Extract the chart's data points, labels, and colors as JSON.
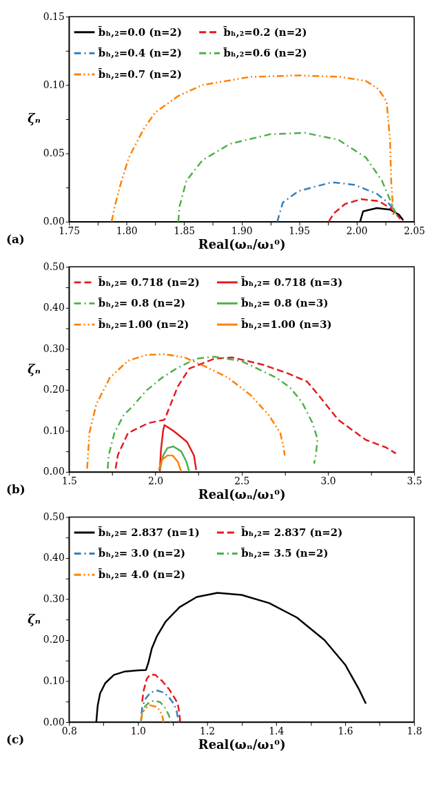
{
  "chart_data": [
    {
      "type": "line",
      "xlabel": "Real(ωₙ/ω₁⁰)",
      "ylabel": "ζₙ",
      "legend": "top left",
      "grid": false,
      "annotations": [
        "(a)"
      ],
      "xlim": [
        1.75,
        2.05
      ],
      "ylim": [
        0,
        0.15
      ],
      "xticks": [
        {
          "value": 1.75,
          "label": "1.75"
        },
        {
          "value": 1.775,
          "label": null
        },
        {
          "value": 1.8,
          "label": "1.80"
        },
        {
          "value": 1.825,
          "label": null
        },
        {
          "value": 1.85,
          "label": "1.85"
        },
        {
          "value": 1.875,
          "label": null
        },
        {
          "value": 1.9,
          "label": "1.90"
        },
        {
          "value": 1.925,
          "label": null
        },
        {
          "value": 1.95,
          "label": "1.95"
        },
        {
          "value": 1.975,
          "label": null
        },
        {
          "value": 2.0,
          "label": "2.00"
        },
        {
          "value": 2.025,
          "label": null
        },
        {
          "value": 2.05,
          "label": "2.05"
        }
      ],
      "yticks": [
        {
          "value": 0,
          "label": "0.00"
        },
        {
          "value": 0.025,
          "label": null
        },
        {
          "value": 0.05,
          "label": "0.05"
        },
        {
          "value": 0.075,
          "label": null
        },
        {
          "value": 0.1,
          "label": "0.10"
        },
        {
          "value": 0.125,
          "label": null
        },
        {
          "value": 0.15,
          "label": "0.15"
        }
      ],
      "series": [
        {
          "name": "b̄ₕ,₂=0.0 (n=2)",
          "color": "#000000",
          "line_style": "solid",
          "x": [
            2.003,
            2.0056,
            2.0175,
            2.029,
            2.037,
            2.0405
          ],
          "values": [
            0,
            0.0076,
            0.01,
            0.0089,
            0.005,
            0.001
          ]
        },
        {
          "name": "b̄ₕ,₂=0.2 (n=2)",
          "color": "#e41a1c",
          "line_style": "dashed",
          "x": [
            1.9757,
            1.98,
            1.99,
            2.004,
            2.0195,
            2.031,
            2.038
          ],
          "values": [
            0,
            0.006,
            0.013,
            0.0165,
            0.015,
            0.009,
            0.002
          ]
        },
        {
          "name": "b̄ₕ,₂=0.4 (n=2)",
          "color": "#377eb8",
          "line_style": "dashdot",
          "x": [
            1.931,
            1.9358,
            1.9494,
            1.9786,
            1.998,
            2.0175,
            2.0272,
            2.033,
            2.035
          ],
          "values": [
            0,
            0.014,
            0.0224,
            0.0289,
            0.027,
            0.0205,
            0.014,
            0.0084,
            0.0044
          ]
        },
        {
          "name": "b̄ₕ,₂=0.6 (n=2)",
          "color": "#4daf4a",
          "line_style": "dashdot",
          "x": [
            1.845,
            1.846,
            1.852,
            1.866,
            1.89,
            1.925,
            1.955,
            1.984,
            2.008,
            2.022,
            2.029,
            2.034
          ],
          "values": [
            0,
            0.011,
            0.03,
            0.045,
            0.057,
            0.064,
            0.065,
            0.06,
            0.047,
            0.03,
            0.016,
            0.006
          ]
        },
        {
          "name": "b̄ₕ,₂=0.7 (n=2)",
          "color": "#ff7f00",
          "line_style": "dashdotdot",
          "x": [
            1.787,
            1.79,
            1.795,
            1.802,
            1.815,
            1.825,
            1.845,
            1.866,
            1.908,
            1.95,
            1.985,
            2.008,
            2.019,
            2.026,
            2.029,
            2.03,
            2.032
          ],
          "values": [
            0,
            0.012,
            0.028,
            0.047,
            0.068,
            0.08,
            0.092,
            0.1,
            0.106,
            0.107,
            0.106,
            0.103,
            0.097,
            0.088,
            0.06,
            0.03,
            0.005
          ]
        }
      ]
    },
    {
      "type": "line",
      "xlabel": "Real(ωₙ/ω₁⁰)",
      "ylabel": "ζₙ",
      "legend": "top left",
      "grid": false,
      "annotations": [
        "(b)"
      ],
      "xlim": [
        1.5,
        3.5
      ],
      "ylim": [
        0,
        0.5
      ],
      "xticks": [
        1.5,
        {
          "value": 1.75,
          "label": null
        },
        {
          "value": 2,
          "label": "2.0"
        },
        {
          "value": 2.25,
          "label": null
        },
        2.5,
        {
          "value": 2.75,
          "label": null
        },
        {
          "value": 3,
          "label": "3.0"
        },
        {
          "value": 3.25,
          "label": null
        },
        3.5
      ],
      "yticks": [
        {
          "value": 0,
          "label": "0.00"
        },
        {
          "value": 0.05,
          "label": null
        },
        {
          "value": 0.1,
          "label": "0.10"
        },
        {
          "value": 0.15,
          "label": null
        },
        {
          "value": 0.2,
          "label": "0.20"
        },
        {
          "value": 0.25,
          "label": null
        },
        {
          "value": 0.3,
          "label": "0.30"
        },
        {
          "value": 0.35,
          "label": null
        },
        {
          "value": 0.4,
          "label": "0.40"
        },
        {
          "value": 0.45,
          "label": null
        },
        {
          "value": 0.5,
          "label": "0.50"
        }
      ],
      "series": [
        {
          "name": "b̄ₕ,₂= 0.718 (n=2)",
          "color": "#e41a1c",
          "line_style": "dashed",
          "x": [
            1.77,
            1.783,
            1.842,
            1.96,
            2.053,
            2.13,
            2.197,
            2.342,
            2.447,
            2.618,
            2.763,
            2.88,
            2.94,
            3.06,
            3.22,
            3.335,
            3.394
          ],
          "values": [
            0.008,
            0.041,
            0.095,
            0.119,
            0.127,
            0.208,
            0.252,
            0.276,
            0.279,
            0.262,
            0.241,
            0.22,
            0.19,
            0.127,
            0.078,
            0.06,
            0.045
          ]
        },
        {
          "name": "b̄ₕ,₂= 0.718 (n=3)",
          "color": "#e41a1c",
          "line_style": "solid",
          "x": [
            2.026,
            2.032,
            2.045,
            2.053,
            2.105,
            2.184,
            2.224,
            2.237
          ],
          "values": [
            0,
            0.05,
            0.1,
            0.114,
            0.1,
            0.073,
            0.04,
            0.005
          ]
        },
        {
          "name": "b̄ₕ,₂= 0.8 (n=2)",
          "color": "#4daf4a",
          "line_style": "dashdot",
          "x": [
            1.724,
            1.73,
            1.763,
            1.816,
            1.868,
            1.947,
            2.04,
            2.13,
            2.237,
            2.34,
            2.5,
            2.7,
            2.78,
            2.85,
            2.91,
            2.94,
            2.93,
            2.92
          ],
          "values": [
            0.008,
            0.041,
            0.095,
            0.138,
            0.16,
            0.198,
            0.23,
            0.254,
            0.276,
            0.281,
            0.27,
            0.23,
            0.206,
            0.17,
            0.12,
            0.08,
            0.04,
            0.02
          ]
        },
        {
          "name": "b̄ₕ,₂= 0.8 (n=3)",
          "color": "#4daf4a",
          "line_style": "solid",
          "x": [
            2.026,
            2.045,
            2.07,
            2.105,
            2.15,
            2.18,
            2.197
          ],
          "values": [
            0.005,
            0.04,
            0.058,
            0.062,
            0.05,
            0.025,
            0
          ]
        },
        {
          "name": "b̄ₕ,₂=1.00 (n=2)",
          "color": "#ff7f00",
          "line_style": "dashdotdot",
          "x": [
            1.605,
            1.618,
            1.658,
            1.737,
            1.842,
            1.947,
            2.053,
            2.171,
            2.289,
            2.421,
            2.553,
            2.658,
            2.724,
            2.743,
            2.75
          ],
          "values": [
            0.008,
            0.095,
            0.165,
            0.23,
            0.271,
            0.285,
            0.287,
            0.279,
            0.257,
            0.23,
            0.187,
            0.138,
            0.095,
            0.06,
            0.04
          ]
        },
        {
          "name": "b̄ₕ,₂=1.00 (n=3)",
          "color": "#ff7f00",
          "line_style": "solid",
          "x": [
            2.02,
            2.04,
            2.07,
            2.1,
            2.13,
            2.151
          ],
          "values": [
            0.005,
            0.03,
            0.04,
            0.04,
            0.025,
            0
          ]
        }
      ]
    },
    {
      "type": "line",
      "xlabel": "Real(ωₙ/ω₁⁰)",
      "ylabel": "ζₙ",
      "legend": "top left",
      "grid": false,
      "annotations": [
        "(c)"
      ],
      "xlim": [
        0.8,
        1.8
      ],
      "ylim": [
        0,
        0.5
      ],
      "xticks": [
        0.8,
        {
          "value": 0.9,
          "label": null
        },
        {
          "value": 1,
          "label": "1.0"
        },
        {
          "value": 1.1,
          "label": null
        },
        1.2,
        {
          "value": 1.3,
          "label": null
        },
        1.4,
        {
          "value": 1.5,
          "label": null
        },
        1.6,
        {
          "value": 1.7,
          "label": null
        },
        1.8
      ],
      "yticks": [
        {
          "value": 0,
          "label": "0.00"
        },
        {
          "value": 0.05,
          "label": null
        },
        {
          "value": 0.1,
          "label": "0.10"
        },
        {
          "value": 0.15,
          "label": null
        },
        {
          "value": 0.2,
          "label": "0.20"
        },
        {
          "value": 0.25,
          "label": null
        },
        {
          "value": 0.3,
          "label": "0.30"
        },
        {
          "value": 0.35,
          "label": null
        },
        {
          "value": 0.4,
          "label": "0.40"
        },
        {
          "value": 0.45,
          "label": null
        },
        {
          "value": 0.5,
          "label": "0.50"
        }
      ],
      "series": [
        {
          "name": "b̄ₕ,₂= 2.837 (n=1)",
          "color": "#000000",
          "line_style": "solid",
          "x": [
            0.879,
            0.883,
            0.89,
            0.905,
            0.93,
            0.96,
            1.0,
            1.023,
            1.03,
            1.04,
            1.055,
            1.08,
            1.12,
            1.17,
            1.23,
            1.3,
            1.38,
            1.46,
            1.54,
            1.6,
            1.64,
            1.66
          ],
          "values": [
            0,
            0.04,
            0.07,
            0.095,
            0.115,
            0.123,
            0.126,
            0.127,
            0.145,
            0.18,
            0.21,
            0.245,
            0.28,
            0.305,
            0.315,
            0.31,
            0.29,
            0.255,
            0.2,
            0.14,
            0.08,
            0.045
          ]
        },
        {
          "name": "b̄ₕ,₂= 2.837 (n=2)",
          "color": "#e41a1c",
          "line_style": "dashed",
          "x": [
            1.012,
            1.016,
            1.025,
            1.035,
            1.05,
            1.07,
            1.09,
            1.105,
            1.115,
            1.12,
            1.122
          ],
          "values": [
            0.05,
            0.076,
            0.105,
            0.116,
            0.115,
            0.1,
            0.08,
            0.06,
            0.045,
            0.02,
            0
          ]
        },
        {
          "name": "b̄ₕ,₂= 3.0 (n=2)",
          "color": "#377eb8",
          "line_style": "dashdot",
          "x": [
            1.01,
            1.012,
            1.02,
            1.036,
            1.055,
            1.075,
            1.09,
            1.103,
            1.111,
            1.115,
            1.116
          ],
          "values": [
            0.02,
            0.035,
            0.055,
            0.072,
            0.077,
            0.072,
            0.06,
            0.045,
            0.03,
            0.012,
            0
          ]
        },
        {
          "name": "b̄ₕ,₂= 3.5 (n=2)",
          "color": "#4daf4a",
          "line_style": "dashdot",
          "x": [
            1.008,
            1.012,
            1.02,
            1.035,
            1.05,
            1.065,
            1.08,
            1.09,
            1.095
          ],
          "values": [
            0,
            0.02,
            0.038,
            0.05,
            0.052,
            0.048,
            0.033,
            0.015,
            0
          ]
        },
        {
          "name": "b̄ₕ,₂= 4.0 (n=2)",
          "color": "#ff7f00",
          "line_style": "dashdotdot",
          "x": [
            1.008,
            1.012,
            1.02,
            1.035,
            1.05,
            1.062,
            1.07,
            1.074
          ],
          "values": [
            0.005,
            0.02,
            0.033,
            0.041,
            0.038,
            0.03,
            0.015,
            0
          ]
        }
      ]
    }
  ]
}
